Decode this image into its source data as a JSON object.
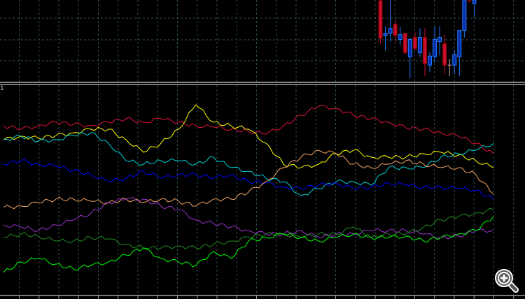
{
  "indicator_label": "1",
  "colors": {
    "background": "#000000",
    "grid": "#2f4f4f",
    "separator": "#c0c0c0",
    "bull_fill": "#0a2ea8",
    "bull_border": "#1e7bff",
    "bear_fill": "#c8102e",
    "bear_border": "#8b0000",
    "doji": "#c9a0a0"
  },
  "zoom_icon": "zoom-in-magnifier-icon",
  "chart_data": [
    {
      "type": "candlestick",
      "ylim": [
        82,
        200
      ],
      "grid": true,
      "candles": [
        {
          "o": 199,
          "c": 145,
          "h": 200,
          "l": 137
        },
        {
          "o": 149,
          "c": 152,
          "h": 162,
          "l": 127
        },
        {
          "o": 152,
          "c": 159,
          "h": 200,
          "l": 140
        },
        {
          "o": 165,
          "c": 149,
          "h": 171,
          "l": 140
        },
        {
          "o": 143,
          "c": 150,
          "h": 162,
          "l": 135
        },
        {
          "o": 152,
          "c": 124,
          "h": 152,
          "l": 121
        },
        {
          "o": 118,
          "c": 143,
          "h": 145,
          "l": 87
        },
        {
          "o": 146,
          "c": 130,
          "h": 153,
          "l": 127
        },
        {
          "o": 124,
          "c": 146,
          "h": 159,
          "l": 118
        },
        {
          "o": 146,
          "c": 108,
          "h": 159,
          "l": 90
        },
        {
          "o": 106,
          "c": 119,
          "h": 125,
          "l": 96
        },
        {
          "o": 118,
          "c": 143,
          "h": 162,
          "l": 110
        },
        {
          "o": 140,
          "c": 146,
          "h": 162,
          "l": 121
        },
        {
          "o": 137,
          "c": 106,
          "h": 150,
          "l": 93
        },
        {
          "o": 106,
          "c": 106,
          "h": 115,
          "l": 90
        },
        {
          "o": 106,
          "c": 121,
          "h": 128,
          "l": 93
        },
        {
          "o": 118,
          "c": 156,
          "h": 156,
          "l": 90
        },
        {
          "o": 156,
          "c": 200,
          "h": 200,
          "l": 146
        },
        {
          "o": 199,
          "c": 198,
          "h": 200,
          "l": 197
        },
        {
          "o": 195,
          "c": 200,
          "h": 200,
          "l": 176
        }
      ]
    },
    {
      "type": "line",
      "ylim": [
        8,
        308
      ],
      "grid": true,
      "x": [
        0,
        1,
        2,
        3,
        4,
        5,
        6,
        7,
        8,
        9,
        10,
        11,
        12,
        13,
        14,
        15,
        16,
        17,
        18,
        19,
        20,
        21,
        22,
        23,
        24,
        25,
        26,
        27,
        28
      ],
      "series": [
        {
          "color": "#dc143c",
          "values": [
            250,
            245,
            250,
            255,
            252,
            250,
            255,
            260,
            255,
            260,
            255,
            250,
            248,
            245,
            242,
            238,
            250,
            265,
            278,
            275,
            265,
            260,
            255,
            247,
            245,
            240,
            235,
            225,
            210
          ]
        },
        {
          "color": "#ffff00",
          "values": [
            230,
            235,
            232,
            236,
            240,
            245,
            245,
            230,
            212,
            225,
            245,
            280,
            255,
            250,
            245,
            225,
            195,
            190,
            195,
            210,
            215,
            205,
            205,
            205,
            210,
            212,
            208,
            200,
            190
          ]
        },
        {
          "color": "#00ced1",
          "values": [
            230,
            235,
            228,
            230,
            236,
            240,
            225,
            200,
            195,
            200,
            200,
            195,
            205,
            190,
            185,
            175,
            170,
            150,
            160,
            170,
            170,
            165,
            190,
            190,
            190,
            205,
            210,
            215,
            225
          ]
        },
        {
          "color": "#0000ff",
          "values": [
            195,
            200,
            195,
            192,
            186,
            180,
            170,
            175,
            185,
            175,
            180,
            180,
            175,
            180,
            170,
            168,
            162,
            160,
            165,
            168,
            160,
            162,
            168,
            165,
            162,
            162,
            160,
            158,
            145
          ]
        },
        {
          "color": "#f4a460",
          "values": [
            133,
            135,
            140,
            145,
            145,
            142,
            140,
            145,
            140,
            145,
            142,
            135,
            145,
            145,
            155,
            170,
            190,
            205,
            215,
            210,
            195,
            190,
            195,
            200,
            195,
            190,
            190,
            180,
            152
          ]
        },
        {
          "color": "#9932cc",
          "values": [
            108,
            105,
            100,
            108,
            115,
            125,
            140,
            145,
            145,
            135,
            130,
            115,
            110,
            105,
            100,
            95,
            95,
            100,
            90,
            95,
            95,
            100,
            100,
            100,
            95,
            90,
            92,
            100,
            100
          ]
        },
        {
          "color": "#228b22",
          "values": [
            90,
            95,
            92,
            85,
            85,
            90,
            88,
            80,
            75,
            75,
            78,
            75,
            80,
            85,
            90,
            95,
            95,
            90,
            95,
            95,
            105,
            90,
            95,
            95,
            105,
            115,
            120,
            125,
            130
          ]
        },
        {
          "color": "#00ff00",
          "values": [
            40,
            55,
            60,
            52,
            45,
            50,
            55,
            65,
            75,
            60,
            55,
            50,
            70,
            60,
            85,
            90,
            95,
            90,
            85,
            90,
            95,
            90,
            90,
            92,
            85,
            90,
            95,
            100,
            120
          ]
        }
      ]
    }
  ]
}
